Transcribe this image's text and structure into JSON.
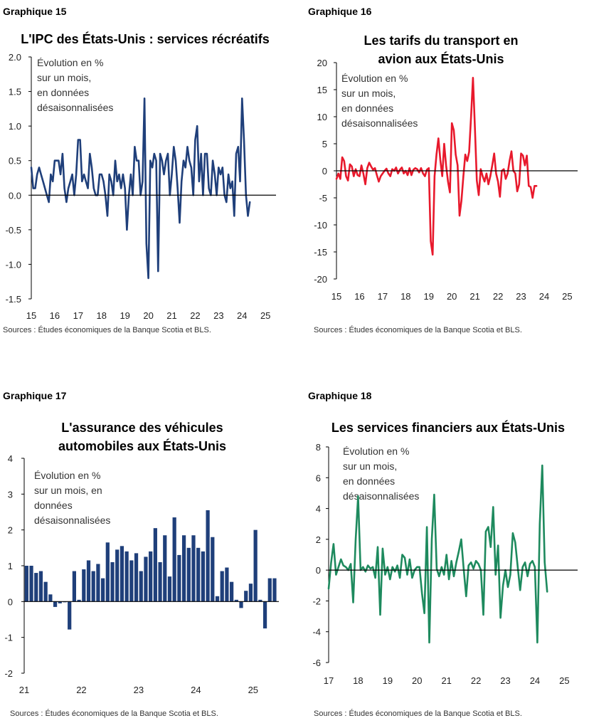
{
  "charts": [
    {
      "label": "Graphique 15",
      "title_lines": [
        "L'IPC des États-Unis : services récréatifs"
      ],
      "note_lines": [
        "Évolution en % sur un mois,",
        "en données désaisonnalisées"
      ],
      "source": "Sources : Études économiques de la Banque Scotia et BLS.",
      "color": "#1F3F7A"
    },
    {
      "label": "Graphique 16",
      "title_lines": [
        "Les tarifs du transport en",
        "avion aux États-Unis"
      ],
      "note_lines": [
        "Évolution en % sur un mois,",
        "en données désaisonnalisées"
      ],
      "source": "Sources : Études économiques de la Banque Scotia et BLS.",
      "color": "#E8192C"
    },
    {
      "label": "Graphique 17",
      "title_lines": [
        "L'assurance des véhicules",
        "automobiles aux États-Unis"
      ],
      "note_lines": [
        "Évolution en % sur un mois, en",
        "données désaisonnalisées"
      ],
      "source": "Sources : Études économiques de la Banque Scotia et BLS.",
      "color": "#1F3F7A"
    },
    {
      "label": "Graphique 18",
      "title_lines": [
        "Les services financiers aux États-Unis"
      ],
      "note_lines": [
        "Évolution en % sur un mois,",
        "en données désaisonnalisées"
      ],
      "source": "Sources : Études économiques de la Banque Scotia et BLS.",
      "color": "#1E8A5E"
    }
  ],
  "chart_data": [
    {
      "type": "line",
      "title": "L'IPC des États-Unis : services récréatifs",
      "ylim": [
        -1.5,
        2.0
      ],
      "yticks": [
        2.0,
        1.5,
        1.0,
        0.5,
        0.0,
        -0.5,
        -1.0,
        -1.5
      ],
      "ytick_labels": [
        "2.0",
        "1.5",
        "1.0",
        "0.5",
        "0.0",
        "-0.5",
        "-1.0",
        "-1.5"
      ],
      "xlim": [
        2015.0,
        2025.45
      ],
      "xtick_labels": [
        "15",
        "16",
        "17",
        "18",
        "19",
        "20",
        "21",
        "22",
        "23",
        "24",
        "25"
      ],
      "x_start": 2015.0,
      "x_step": 0.083333,
      "values": [
        0.4,
        0.1,
        0.1,
        0.3,
        0.4,
        0.3,
        0.2,
        0.1,
        0.0,
        -0.1,
        0.3,
        0.2,
        0.5,
        0.5,
        0.5,
        0.3,
        0.6,
        0.1,
        -0.1,
        0.1,
        0.2,
        0.3,
        0.0,
        0.3,
        0.8,
        0.8,
        0.2,
        0.3,
        0.2,
        0.1,
        0.6,
        0.4,
        0.1,
        0.0,
        0.0,
        0.3,
        0.3,
        0.2,
        0.0,
        -0.3,
        0.3,
        0.2,
        0.0,
        0.5,
        0.2,
        0.3,
        0.1,
        0.3,
        0.1,
        -0.5,
        0.0,
        0.3,
        0.0,
        0.7,
        0.5,
        0.5,
        0.0,
        0.2,
        1.4,
        -0.7,
        -1.2,
        0.5,
        0.4,
        0.6,
        0.5,
        -1.1,
        0.6,
        0.5,
        0.3,
        0.5,
        0.6,
        0.0,
        0.3,
        0.7,
        0.5,
        0.1,
        -0.4,
        0.2,
        0.5,
        0.4,
        0.7,
        0.5,
        0.4,
        0.0,
        0.8,
        1.0,
        0.2,
        0.6,
        0.0,
        0.6,
        0.6,
        0.1,
        0.0,
        0.5,
        0.3,
        0.0,
        0.4,
        0.3,
        0.4,
        0.0,
        -0.1,
        0.3,
        0.1,
        0.2,
        -0.3,
        0.6,
        0.7,
        0.2,
        1.4,
        0.8,
        0.0,
        -0.3,
        -0.1
      ]
    },
    {
      "type": "line",
      "title": "Les tarifs du transport en avion aux États-Unis",
      "ylim": [
        -20,
        20
      ],
      "yticks": [
        20,
        15,
        10,
        5,
        0,
        -5,
        -10,
        -15,
        -20
      ],
      "ytick_labels": [
        "20",
        "15",
        "10",
        "5",
        "0",
        "-5",
        "-10",
        "-15",
        "-20"
      ],
      "xlim": [
        2015.0,
        2025.45
      ],
      "xtick_labels": [
        "15",
        "16",
        "17",
        "18",
        "19",
        "20",
        "21",
        "22",
        "23",
        "24",
        "25"
      ],
      "x_start": 2015.0,
      "x_step": 0.083333,
      "values": [
        -1.5,
        -0.5,
        -1.5,
        2.5,
        1.8,
        -1.0,
        -1.8,
        1.2,
        0.8,
        -1.0,
        0.3,
        -0.8,
        -1.0,
        1.0,
        -0.5,
        -2.5,
        0.5,
        1.5,
        0.8,
        0.2,
        0.5,
        -0.8,
        -2.0,
        -1.0,
        -0.5,
        0.0,
        0.4,
        -0.5,
        -1.0,
        0.3,
        0.0,
        0.6,
        -0.5,
        0.2,
        0.6,
        -0.5,
        0.0,
        -0.8,
        0.5,
        -0.8,
        0.2,
        0.5,
        0.3,
        -0.3,
        0.5,
        -0.5,
        -1.0,
        0.2,
        0.5,
        -13.0,
        -15.5,
        -1.0,
        3.0,
        6.0,
        2.0,
        -1.0,
        5.0,
        1.0,
        -2.0,
        -4.0,
        8.8,
        7.5,
        3.0,
        1.0,
        -8.3,
        -5.5,
        -1.0,
        3.0,
        1.8,
        3.5,
        10.0,
        17.2,
        8.0,
        -1.8,
        -4.5,
        0.3,
        -1.0,
        -2.0,
        -0.5,
        -2.5,
        -1.0,
        1.0,
        3.2,
        -0.5,
        -2.0,
        -4.8,
        0.0,
        0.3,
        -1.5,
        -0.5,
        1.8,
        3.6,
        0.0,
        -0.5,
        -3.8,
        -2.5,
        3.2,
        2.8,
        1.0,
        2.8,
        -2.8,
        -3.0,
        -5.0,
        -2.8,
        -2.8
      ]
    },
    {
      "type": "bar",
      "title": "L'assurance des véhicules automobiles aux États-Unis",
      "ylim": [
        -2,
        4
      ],
      "yticks": [
        4,
        3,
        2,
        1,
        0,
        -1,
        -2
      ],
      "ytick_labels": [
        "4",
        "3",
        "2",
        "1",
        "0",
        "-1",
        "-2"
      ],
      "xlim": [
        2021.0,
        2025.45
      ],
      "xtick_labels": [
        "21",
        "22",
        "23",
        "24",
        "25"
      ],
      "x_start": 2021.0,
      "x_step": 0.083333,
      "values": [
        1.0,
        1.0,
        0.8,
        0.85,
        0.55,
        0.2,
        -0.15,
        -0.05,
        -0.02,
        -0.78,
        0.85,
        0.05,
        0.9,
        1.15,
        0.85,
        1.05,
        0.65,
        1.65,
        1.1,
        1.45,
        1.55,
        1.4,
        1.15,
        1.35,
        0.85,
        1.25,
        1.4,
        2.05,
        1.1,
        1.85,
        0.7,
        2.35,
        1.3,
        1.85,
        1.5,
        1.85,
        1.5,
        1.4,
        2.55,
        1.8,
        0.15,
        0.85,
        0.95,
        0.55,
        0.05,
        -0.18,
        0.3,
        0.5,
        2.0,
        0.05,
        -0.75,
        0.65,
        0.65
      ]
    },
    {
      "type": "line",
      "title": "Les services financiers aux États-Unis",
      "ylim": [
        -6,
        8
      ],
      "yticks": [
        8,
        6,
        4,
        2,
        0,
        -2,
        -4,
        -6
      ],
      "ytick_labels": [
        "8",
        "6",
        "4",
        "2",
        "0",
        "-2",
        "-4",
        "-6"
      ],
      "xlim": [
        2017.0,
        2025.45
      ],
      "xtick_labels": [
        "17",
        "18",
        "19",
        "20",
        "21",
        "22",
        "23",
        "24",
        "25"
      ],
      "x_start": 2017.0,
      "x_step": 0.083333,
      "values": [
        -1.2,
        0.5,
        1.7,
        -0.3,
        0.2,
        0.7,
        0.3,
        0.2,
        0.0,
        0.4,
        -2.1,
        2.0,
        4.8,
        0.0,
        0.2,
        -0.1,
        0.3,
        0.1,
        0.2,
        -0.5,
        1.5,
        -2.9,
        1.4,
        -0.3,
        0.2,
        -0.6,
        0.2,
        -0.1,
        0.3,
        -0.5,
        1.0,
        0.8,
        -0.3,
        0.7,
        -0.5,
        0.0,
        0.2,
        0.2,
        -1.5,
        -2.8,
        2.8,
        -4.7,
        2.0,
        4.9,
        0.1,
        -0.4,
        0.2,
        -0.3,
        1.0,
        -0.6,
        0.6,
        -0.4,
        0.5,
        1.2,
        2.0,
        0.1,
        -1.7,
        0.3,
        0.5,
        0.1,
        0.6,
        0.4,
        0.0,
        -2.9,
        2.5,
        2.8,
        1.5,
        4.1,
        -0.3,
        1.6,
        -3.1,
        -1.0,
        0.0,
        -1.1,
        -0.3,
        2.4,
        1.8,
        0.2,
        -1.3,
        0.2,
        0.5,
        -0.4,
        0.4,
        0.6,
        0.2,
        -4.7,
        3.0,
        6.8,
        0.5,
        -1.4
      ]
    }
  ]
}
